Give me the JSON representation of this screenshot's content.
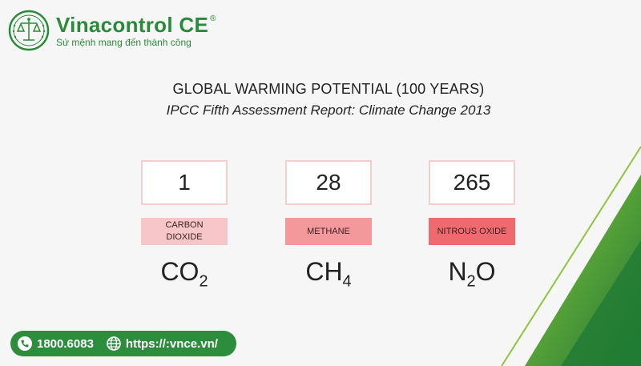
{
  "brand": {
    "name": "Vinacontrol CE",
    "registered": "®",
    "slogan": "Sứ mệnh mang đến thành công",
    "color": "#2a8a3a"
  },
  "heading": {
    "title": "GLOBAL WARMING POTENTIAL (100 YEARS)",
    "subtitle": "IPCC Fifth Assessment Report: Climate Change 2013"
  },
  "gases": [
    {
      "value": "1",
      "label_line1": "CARBON",
      "label_line2": "DIOXIDE",
      "formula_base": "CO",
      "formula_sub": "2",
      "label_color": "#f7c6c8"
    },
    {
      "value": "28",
      "label_line1": "METHANE",
      "label_line2": "",
      "formula_base": "CH",
      "formula_sub": "4",
      "label_color": "#f3999c"
    },
    {
      "value": "265",
      "label_line1": "NITROUS OXIDE",
      "label_line2": "",
      "formula_base": "N",
      "formula_sub": "2",
      "formula_tail": "O",
      "label_color": "#ef6a6e"
    }
  ],
  "contact": {
    "phone": "1800.6083",
    "website": "https://:vnce.vn/",
    "phone_icon": "phone-icon",
    "web_icon": "globe-icon"
  }
}
